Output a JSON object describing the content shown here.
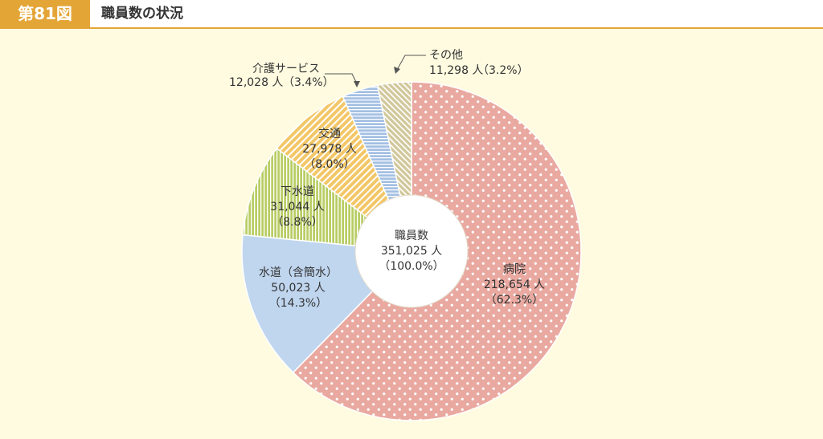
{
  "header": {
    "figure_number": "第81図",
    "title": "職員数の状況"
  },
  "colors": {
    "header_accent": "#e4a537",
    "background": "#fffbe0"
  },
  "chart_data": {
    "type": "pie",
    "title": "職員数の状況",
    "center": {
      "label": "職員数",
      "value_text": "351,025 人",
      "percent_text": "（100.0%）",
      "total": 351025
    },
    "slices": [
      {
        "label": "病院",
        "value": 218654,
        "value_text": "218,654 人",
        "percent_text": "（62.3%）",
        "percent": 62.3,
        "color": "#e9a9a0",
        "pattern": "dots"
      },
      {
        "label": "水道（含簡水）",
        "value": 50023,
        "value_text": "50,023 人",
        "percent_text": "（14.3%）",
        "percent": 14.3,
        "color": "#c0d6ef",
        "pattern": "solid"
      },
      {
        "label": "下水道",
        "value": 31044,
        "value_text": "31,044 人",
        "percent_text": "（8.8%）",
        "percent": 8.8,
        "color": "#b7cd63",
        "pattern": "vertical-lines"
      },
      {
        "label": "交通",
        "value": 27978,
        "value_text": "27,978 人",
        "percent_text": "（8.0%）",
        "percent": 8.0,
        "color": "#f3c767",
        "pattern": "diagonal-lines"
      },
      {
        "label": "介護サービス",
        "value": 12028,
        "value_text": "12,028 人",
        "percent_text": "（3.4%）",
        "percent": 3.4,
        "color": "#a3bfe3",
        "pattern": "horizontal-lines"
      },
      {
        "label": "その他",
        "value": 11298,
        "value_text": "11,298 人",
        "percent_text": "（3.2%）",
        "percent": 3.2,
        "color": "#d1c79a",
        "pattern": "diagonal-lines"
      }
    ]
  }
}
